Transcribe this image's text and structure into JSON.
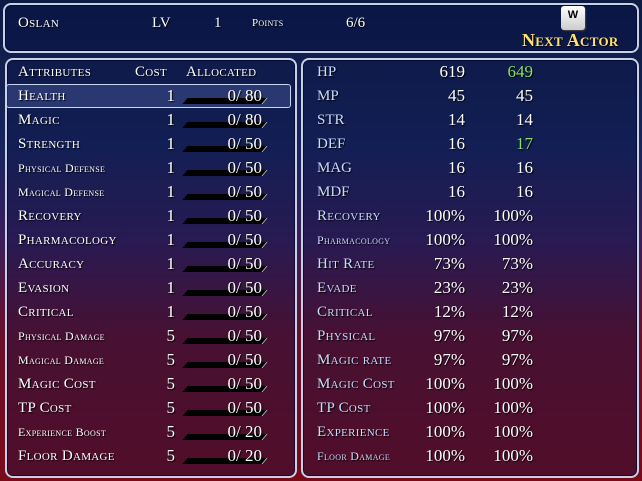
{
  "header": {
    "actor_name": "Oslan",
    "level_label": "LV",
    "level": "1",
    "points_label": "Points",
    "points": "6/6",
    "next_key": "W",
    "next_actor_label": "Next Actor"
  },
  "attributes": {
    "header": {
      "name": "Attributes",
      "cost": "Cost",
      "allocated": "Allocated"
    },
    "items": [
      {
        "name": "Health",
        "cost": "1",
        "allocated": "0/ 80"
      },
      {
        "name": "Magic",
        "cost": "1",
        "allocated": "0/ 80"
      },
      {
        "name": "Strength",
        "cost": "1",
        "allocated": "0/ 50"
      },
      {
        "name": "Physical Defense",
        "cost": "1",
        "allocated": "0/ 50"
      },
      {
        "name": "Magical Defense",
        "cost": "1",
        "allocated": "0/ 50"
      },
      {
        "name": "Recovery",
        "cost": "1",
        "allocated": "0/ 50"
      },
      {
        "name": "Pharmacology",
        "cost": "1",
        "allocated": "0/ 50"
      },
      {
        "name": "Accuracy",
        "cost": "1",
        "allocated": "0/ 50"
      },
      {
        "name": "Evasion",
        "cost": "1",
        "allocated": "0/ 50"
      },
      {
        "name": "Critical",
        "cost": "1",
        "allocated": "0/ 50"
      },
      {
        "name": "Physical Damage",
        "cost": "5",
        "allocated": "0/ 50"
      },
      {
        "name": "Magical Damage",
        "cost": "5",
        "allocated": "0/ 50"
      },
      {
        "name": "Magic Cost",
        "cost": "5",
        "allocated": "0/ 50"
      },
      {
        "name": "TP Cost",
        "cost": "5",
        "allocated": "0/ 50"
      },
      {
        "name": "Experience Boost",
        "cost": "5",
        "allocated": "0/ 20"
      },
      {
        "name": "Floor Damage",
        "cost": "5",
        "allocated": "0/ 20"
      }
    ]
  },
  "stats": [
    {
      "name": "HP",
      "current": "619",
      "new": "649",
      "changed": true
    },
    {
      "name": "MP",
      "current": "45",
      "new": "45"
    },
    {
      "name": "STR",
      "current": "14",
      "new": "14"
    },
    {
      "name": "DEF",
      "current": "16",
      "new": "17",
      "changed": true
    },
    {
      "name": "MAG",
      "current": "16",
      "new": "16"
    },
    {
      "name": "MDF",
      "current": "16",
      "new": "16"
    },
    {
      "name": "Recovery",
      "current": "100%",
      "new": "100%"
    },
    {
      "name": "Pharmacology",
      "current": "100%",
      "new": "100%"
    },
    {
      "name": "Hit Rate",
      "current": "73%",
      "new": "73%"
    },
    {
      "name": "Evade",
      "current": "23%",
      "new": "23%"
    },
    {
      "name": "Critical",
      "current": "12%",
      "new": "12%"
    },
    {
      "name": "Physical",
      "current": "97%",
      "new": "97%"
    },
    {
      "name": "Magic rate",
      "current": "97%",
      "new": "97%"
    },
    {
      "name": "Magic Cost",
      "current": "100%",
      "new": "100%"
    },
    {
      "name": "TP Cost",
      "current": "100%",
      "new": "100%"
    },
    {
      "name": "Experience",
      "current": "100%",
      "new": "100%"
    },
    {
      "name": "Floor Damage",
      "current": "100%",
      "new": "100%"
    }
  ],
  "colors": {
    "increase": "#88e060",
    "label": "#c8dcff",
    "highlight": "#ffe070"
  }
}
